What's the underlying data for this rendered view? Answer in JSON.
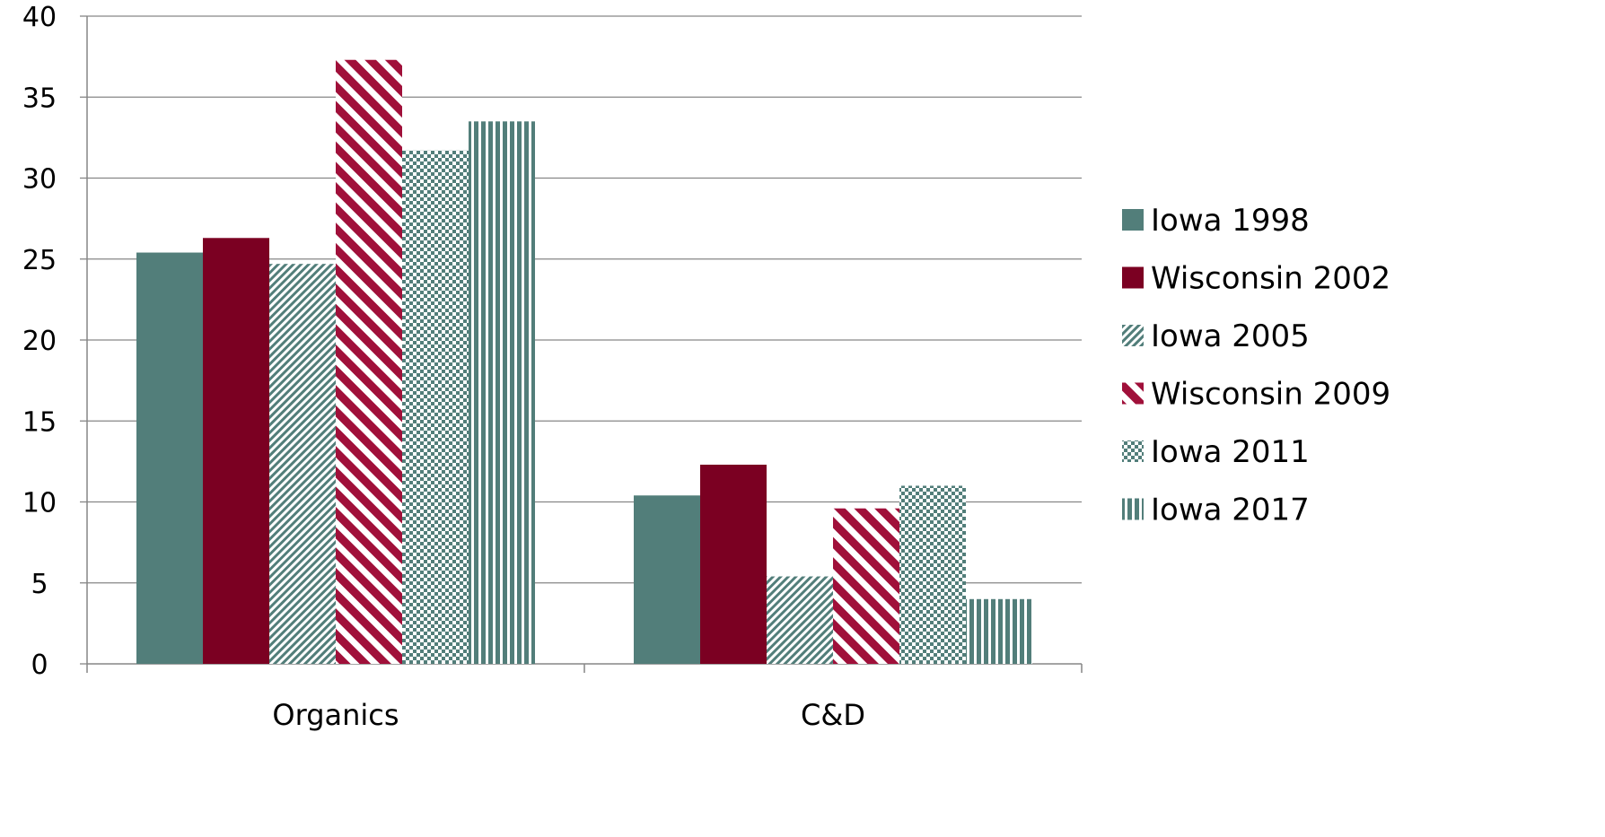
{
  "chart_data": {
    "type": "bar",
    "title": "",
    "xlabel": "",
    "ylabel": "",
    "categories": [
      "Organics",
      "C&D"
    ],
    "ylim": [
      0,
      40
    ],
    "yticks": [
      0,
      5,
      10,
      15,
      20,
      25,
      30,
      35,
      40
    ],
    "grid": true,
    "legend_position": "right",
    "series": [
      {
        "name": "Iowa 1998",
        "values": [
          25.4,
          10.4
        ],
        "color": "#527e7a",
        "pattern": "solid"
      },
      {
        "name": "Wisconsin 2002",
        "values": [
          26.3,
          12.3
        ],
        "color": "#7b0022",
        "pattern": "solid"
      },
      {
        "name": "Iowa 2005",
        "values": [
          24.7,
          5.4
        ],
        "color": "#527e7a",
        "pattern": "fine-diagonal"
      },
      {
        "name": "Wisconsin 2009",
        "values": [
          37.3,
          9.6
        ],
        "color": "#a0103a",
        "pattern": "wide-diagonal"
      },
      {
        "name": "Iowa 2011",
        "values": [
          31.7,
          11.0
        ],
        "color": "#527e7a",
        "pattern": "checker"
      },
      {
        "name": "Iowa 2017",
        "values": [
          33.5,
          4.0
        ],
        "color": "#527e7a",
        "pattern": "vertical"
      }
    ]
  }
}
